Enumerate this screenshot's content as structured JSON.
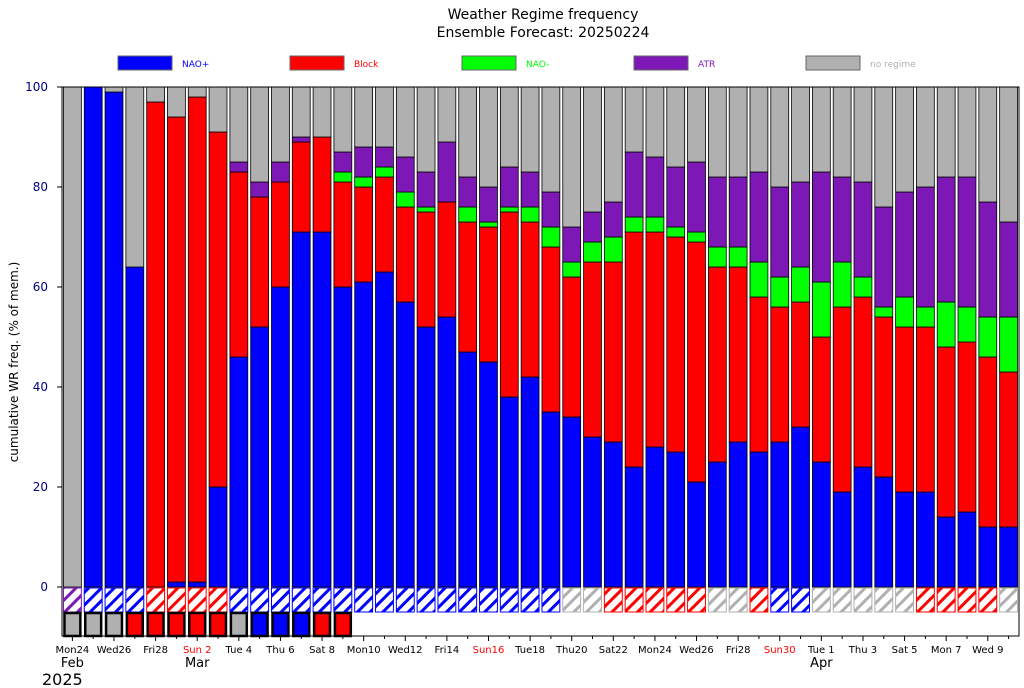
{
  "chart_data": {
    "type": "bar",
    "title": "Weather Regime frequency",
    "subtitle": "Ensemble Forecast: 20250224",
    "xlabel": "",
    "ylabel": "cumulative WR freq. (% of mem.)",
    "ylim": [
      0,
      100
    ],
    "yticks": [
      "0",
      "20",
      "40",
      "60",
      "80",
      "100"
    ],
    "stacked": true,
    "legend_position": "top",
    "colors": {
      "NAO+": "#0000ff",
      "Block": "#ff0000",
      "NAO-": "#00ff00",
      "ATR": "#7d17b5",
      "no regime": "#b0b0b0"
    },
    "legend": [
      {
        "name": "NAO+",
        "color": "#0000ff"
      },
      {
        "name": "Block",
        "color": "#ff0000"
      },
      {
        "name": "NAO-",
        "color": "#00ff00"
      },
      {
        "name": "ATR",
        "color": "#7d17b5"
      },
      {
        "name": "no regime",
        "color": "#b0b0b0"
      }
    ],
    "tick_labels": [
      {
        "index": 0,
        "text": "Mon24",
        "color": "#000000"
      },
      {
        "index": 2,
        "text": "Wed26",
        "color": "#000000"
      },
      {
        "index": 4,
        "text": "Fri28",
        "color": "#000000"
      },
      {
        "index": 6,
        "text": "Sun 2",
        "color": "#ff0000"
      },
      {
        "index": 8,
        "text": "Tue 4",
        "color": "#000000"
      },
      {
        "index": 10,
        "text": "Thu 6",
        "color": "#000000"
      },
      {
        "index": 12,
        "text": "Sat 8",
        "color": "#000000"
      },
      {
        "index": 14,
        "text": "Mon10",
        "color": "#000000"
      },
      {
        "index": 16,
        "text": "Wed12",
        "color": "#000000"
      },
      {
        "index": 18,
        "text": "Fri14",
        "color": "#000000"
      },
      {
        "index": 20,
        "text": "Sun16",
        "color": "#ff0000"
      },
      {
        "index": 22,
        "text": "Tue18",
        "color": "#000000"
      },
      {
        "index": 24,
        "text": "Thu20",
        "color": "#000000"
      },
      {
        "index": 26,
        "text": "Sat22",
        "color": "#000000"
      },
      {
        "index": 28,
        "text": "Mon24",
        "color": "#000000"
      },
      {
        "index": 30,
        "text": "Wed26",
        "color": "#000000"
      },
      {
        "index": 32,
        "text": "Fri28",
        "color": "#000000"
      },
      {
        "index": 34,
        "text": "Sun30",
        "color": "#ff0000"
      },
      {
        "index": 36,
        "text": "Tue 1",
        "color": "#000000"
      },
      {
        "index": 38,
        "text": "Thu 3",
        "color": "#000000"
      },
      {
        "index": 40,
        "text": "Sat 5",
        "color": "#000000"
      },
      {
        "index": 42,
        "text": "Mon 7",
        "color": "#000000"
      },
      {
        "index": 44,
        "text": "Wed 9",
        "color": "#000000"
      }
    ],
    "month_labels": [
      {
        "index": 0,
        "text": "Feb"
      },
      {
        "index": 6,
        "text": "Mar"
      },
      {
        "index": 36,
        "text": "Apr"
      }
    ],
    "year_label": "2025",
    "n_days": 46,
    "series": [
      {
        "name": "NAO+",
        "values": [
          0,
          100,
          99,
          64,
          0,
          1,
          1,
          20,
          46,
          52,
          60,
          71,
          71,
          60,
          61,
          63,
          57,
          52,
          54,
          47,
          45,
          38,
          42,
          35,
          34,
          30,
          29,
          24,
          28,
          27,
          21,
          25,
          29,
          27,
          29,
          32,
          25,
          19,
          24,
          22,
          19,
          19,
          14,
          15,
          12,
          12
        ]
      },
      {
        "name": "Block",
        "values": [
          0,
          0,
          0,
          0,
          97,
          93,
          97,
          71,
          37,
          26,
          21,
          18,
          19,
          21,
          19,
          19,
          19,
          23,
          23,
          26,
          27,
          37,
          31,
          33,
          28,
          35,
          36,
          47,
          43,
          43,
          48,
          39,
          35,
          31,
          27,
          25,
          25,
          37,
          34,
          32,
          33,
          33,
          34,
          34,
          34,
          31
        ]
      },
      {
        "name": "NAO-",
        "values": [
          0,
          0,
          0,
          0,
          0,
          0,
          0,
          0,
          0,
          0,
          0,
          0,
          0,
          2,
          2,
          2,
          3,
          1,
          0,
          3,
          1,
          1,
          3,
          4,
          3,
          4,
          5,
          3,
          3,
          2,
          2,
          4,
          4,
          7,
          6,
          7,
          11,
          9,
          4,
          2,
          6,
          4,
          9,
          7,
          8,
          11
        ]
      },
      {
        "name": "ATR",
        "values": [
          0,
          0,
          0,
          0,
          0,
          0,
          0,
          0,
          2,
          3,
          4,
          1,
          0,
          4,
          6,
          4,
          7,
          7,
          12,
          6,
          7,
          8,
          7,
          7,
          7,
          6,
          7,
          13,
          12,
          12,
          14,
          14,
          14,
          18,
          18,
          17,
          22,
          17,
          19,
          20,
          21,
          24,
          25,
          26,
          23,
          19
        ]
      },
      {
        "name": "no regime",
        "values": [
          100,
          0,
          1,
          36,
          3,
          6,
          2,
          9,
          15,
          19,
          15,
          10,
          10,
          13,
          12,
          12,
          14,
          17,
          11,
          18,
          20,
          16,
          17,
          21,
          28,
          25,
          23,
          13,
          14,
          16,
          15,
          18,
          18,
          17,
          20,
          19,
          17,
          18,
          19,
          24,
          21,
          20,
          18,
          18,
          23,
          27
        ]
      }
    ],
    "dominant_regime": [
      "ATR",
      "NAO+",
      "NAO+",
      "NAO+",
      "Block",
      "Block",
      "Block",
      "Block",
      "NAO+",
      "NAO+",
      "NAO+",
      "NAO+",
      "NAO+",
      "NAO+",
      "NAO+",
      "NAO+",
      "NAO+",
      "NAO+",
      "NAO+",
      "NAO+",
      "NAO+",
      "NAO+",
      "NAO+",
      "NAO+",
      "no regime",
      "no regime",
      "Block",
      "Block",
      "Block",
      "Block",
      "Block",
      "no regime",
      "no regime",
      "Block",
      "NAO+",
      "NAO+",
      "no regime",
      "no regime",
      "no regime",
      "no regime",
      "no regime",
      "Block",
      "Block",
      "Block",
      "Block",
      "no regime"
    ],
    "observed_regime": [
      "no regime",
      "no regime",
      "no regime",
      "Block",
      "Block",
      "Block",
      "Block",
      "Block",
      "no regime",
      "NAO+",
      "NAO+",
      "NAO+",
      "Block",
      "Block"
    ]
  }
}
